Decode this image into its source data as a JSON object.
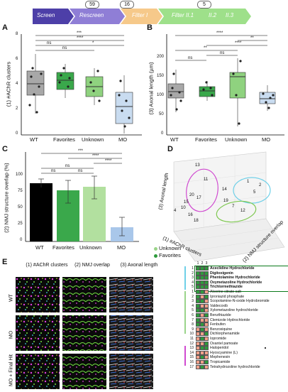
{
  "pipeline": {
    "stages": [
      "Screen",
      "Rescreen",
      "Filter I",
      "Filter II.1",
      "II.2",
      "II.3"
    ],
    "counts": [
      "59",
      "16",
      "5"
    ]
  },
  "panels": {
    "a": "A",
    "b": "B",
    "c": "C",
    "d": "D",
    "e": "E"
  },
  "panelA": {
    "ylabel": "(1) #AChR clusters",
    "yticks": [
      "0",
      "2",
      "4",
      "6",
      "8"
    ],
    "categories": [
      "WT",
      "Favorites",
      "Unknown",
      "MO"
    ],
    "sig": [
      "***",
      "****",
      "*",
      "ns",
      "ns"
    ]
  },
  "panelB": {
    "ylabel": "(3) Axonal length (µm)",
    "yticks": [
      "0",
      "50",
      "100",
      "150",
      "200"
    ],
    "categories": [
      "WT",
      "Favorites",
      "Unknown",
      "MO"
    ],
    "sig": [
      "****",
      "**",
      "****",
      "**",
      "ns",
      "ns"
    ]
  },
  "panelC": {
    "ylabel": "(2) NMJ structure overlap (%)",
    "yticks": [
      "0",
      "25",
      "50",
      "75",
      "100"
    ],
    "categories": [
      "WT",
      "Favorites",
      "Unknown",
      "MO"
    ],
    "sig": [
      "***",
      "****",
      "****",
      "ns",
      "ns",
      "ns"
    ]
  },
  "panelD": {
    "axis_z": "(3) Axonal length",
    "axis_x": "(1) #AChR clusters",
    "axis_y": "(2) NMJ structure overlap",
    "legend": [
      "Unknown",
      "Favorites"
    ],
    "points": [
      "13",
      "1",
      "2",
      "5",
      "11",
      "14",
      "20",
      "17",
      "19",
      "15",
      "10",
      "16",
      "7",
      "4",
      "12",
      "18"
    ],
    "legend_colors": [
      "#9ad48a",
      "#2e9a3c"
    ]
  },
  "panelE": {
    "cols": [
      "(1) #AChR clusters",
      "(2) NMJ overlap",
      "(3) Axonal length"
    ],
    "rows": [
      "WT",
      "MO",
      "MO + Final Hit"
    ]
  },
  "table": {
    "head": [
      "1",
      "2",
      "3"
    ],
    "rows": [
      {
        "n": "1",
        "name": "Aceclidine Hydrochloride",
        "bold": true
      },
      {
        "n": "2",
        "name": "Digitoxigenin",
        "bold": true
      },
      {
        "n": "3",
        "name": "Phentolamine Hydrochloride",
        "bold": true
      },
      {
        "n": "4",
        "name": "Oxymetazoline Hydrochloride",
        "bold": true
      },
      {
        "n": "5",
        "name": "Trichlormethiazide",
        "bold": true
      },
      {
        "n": "1",
        "name": "Alverine citrate salt",
        "bold": false
      },
      {
        "n": "2",
        "name": "Iproniazid phosphate",
        "bold": false
      },
      {
        "n": "3",
        "name": "Scopolamine-N-oxide Hydrobromide",
        "bold": false
      },
      {
        "n": "4",
        "name": "Valdecoxib",
        "bold": false
      },
      {
        "n": "5",
        "name": "Xylometazoline hydrochloride",
        "bold": false
      },
      {
        "n": "6",
        "name": "Benzthiazide",
        "bold": false
      },
      {
        "n": "7",
        "name": "Clemizole Hydrochloride",
        "bold": false
      },
      {
        "n": "8",
        "name": "Fenbufen",
        "bold": false
      },
      {
        "n": "9",
        "name": "Benzoxiquine",
        "bold": false
      },
      {
        "n": "10",
        "name": "Dichlorphenamide",
        "bold": false
      },
      {
        "n": "11",
        "name": "Iopromide",
        "bold": false
      },
      {
        "n": "12",
        "name": "Oxantel pamoate",
        "bold": false
      },
      {
        "n": "13",
        "name": "Haloperidol",
        "bold": false
      },
      {
        "n": "14",
        "name": "Hyoscyamine (L)",
        "bold": false
      },
      {
        "n": "15",
        "name": "Mephenesin",
        "bold": false
      },
      {
        "n": "16",
        "name": "Tropicamide",
        "bold": false
      },
      {
        "n": "17",
        "name": "Tetrahydrozoline hydrochloride",
        "bold": false
      }
    ]
  },
  "colors": {
    "gray": "#a8a8a8",
    "green": "#3aa84b",
    "lightgreen": "#8fd27f",
    "blue": "#c9dcf0",
    "hit": "#2e9a3c",
    "miss": "#f2a08a"
  }
}
